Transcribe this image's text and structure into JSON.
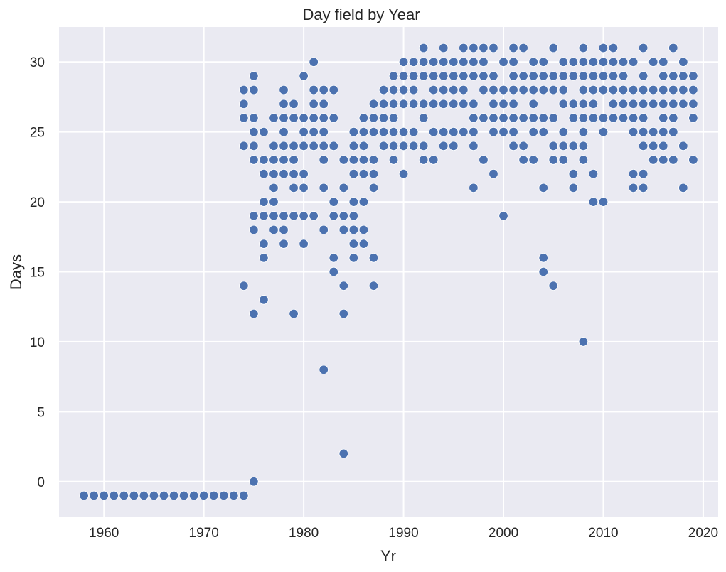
{
  "chart_data": {
    "type": "scatter",
    "title": "Day field by Year",
    "xlabel": "Yr",
    "ylabel": "Days",
    "xlim": [
      1955.5,
      2021.5
    ],
    "ylim": [
      -2.5,
      32.5
    ],
    "xticks": [
      1960,
      1970,
      1980,
      1990,
      2000,
      2010,
      2020
    ],
    "yticks": [
      0,
      5,
      10,
      15,
      20,
      25,
      30
    ],
    "grid": true,
    "legend": null,
    "colors": {
      "point": "#4c72b0",
      "background": "#eaeaf2",
      "grid": "#ffffff",
      "text": "#262626"
    },
    "points_by_year": {
      "1958": [
        -1
      ],
      "1959": [
        -1
      ],
      "1960": [
        -1
      ],
      "1961": [
        -1
      ],
      "1962": [
        -1
      ],
      "1963": [
        -1
      ],
      "1964": [
        -1
      ],
      "1965": [
        -1
      ],
      "1966": [
        -1
      ],
      "1967": [
        -1
      ],
      "1968": [
        -1
      ],
      "1969": [
        -1
      ],
      "1970": [
        -1
      ],
      "1971": [
        -1
      ],
      "1972": [
        -1
      ],
      "1973": [
        -1
      ],
      "1974": [
        -1,
        28,
        27,
        26,
        24,
        14
      ],
      "1975": [
        29,
        28,
        26,
        25,
        24,
        23,
        19,
        18,
        12,
        0
      ],
      "1976": [
        25,
        23,
        22,
        20,
        19,
        17,
        16,
        13
      ],
      "1977": [
        26,
        24,
        23,
        22,
        21,
        20,
        19,
        18
      ],
      "1978": [
        28,
        27,
        26,
        25,
        24,
        23,
        22,
        19,
        18,
        17
      ],
      "1979": [
        27,
        26,
        24,
        23,
        22,
        21,
        19,
        12
      ],
      "1980": [
        29,
        26,
        25,
        24,
        22,
        21,
        19,
        17
      ],
      "1981": [
        30,
        28,
        27,
        26,
        25,
        24,
        19
      ],
      "1982": [
        28,
        27,
        26,
        25,
        24,
        23,
        21,
        18,
        8
      ],
      "1983": [
        28,
        26,
        24,
        20,
        19,
        16,
        15
      ],
      "1984": [
        23,
        21,
        19,
        18,
        14,
        12,
        2
      ],
      "1985": [
        25,
        24,
        23,
        22,
        20,
        19,
        18,
        17,
        16
      ],
      "1986": [
        26,
        25,
        24,
        23,
        22,
        20,
        18,
        17
      ],
      "1987": [
        27,
        26,
        25,
        23,
        22,
        21,
        16,
        14
      ],
      "1988": [
        28,
        27,
        26,
        25,
        24
      ],
      "1989": [
        29,
        28,
        27,
        26,
        25,
        24,
        23
      ],
      "1990": [
        30,
        29,
        28,
        27,
        25,
        24,
        22
      ],
      "1991": [
        30,
        29,
        28,
        27,
        25,
        24
      ],
      "1992": [
        31,
        30,
        29,
        27,
        26,
        24,
        23
      ],
      "1993": [
        30,
        29,
        28,
        27,
        25,
        23
      ],
      "1994": [
        31,
        30,
        29,
        28,
        27,
        25,
        24
      ],
      "1995": [
        30,
        29,
        28,
        27,
        25,
        24
      ],
      "1996": [
        31,
        30,
        29,
        28,
        27,
        25
      ],
      "1997": [
        31,
        30,
        29,
        27,
        26,
        25,
        24,
        21
      ],
      "1998": [
        31,
        30,
        29,
        28,
        26,
        23
      ],
      "1999": [
        31,
        29,
        28,
        27,
        26,
        25,
        22
      ],
      "2000": [
        30,
        28,
        27,
        26,
        25,
        19
      ],
      "2001": [
        31,
        30,
        29,
        28,
        27,
        26,
        25,
        24
      ],
      "2002": [
        31,
        29,
        28,
        26,
        24,
        23
      ],
      "2003": [
        30,
        29,
        28,
        27,
        26,
        25,
        23
      ],
      "2004": [
        30,
        29,
        28,
        26,
        25,
        21,
        16,
        15
      ],
      "2005": [
        31,
        29,
        28,
        26,
        24,
        23,
        14
      ],
      "2006": [
        30,
        29,
        28,
        27,
        25,
        24,
        23
      ],
      "2007": [
        30,
        29,
        27,
        26,
        24,
        22,
        21
      ],
      "2008": [
        31,
        30,
        29,
        28,
        27,
        26,
        25,
        24,
        23,
        10
      ],
      "2009": [
        30,
        29,
        28,
        27,
        26,
        22,
        20
      ],
      "2010": [
        31,
        30,
        29,
        28,
        26,
        25,
        20
      ],
      "2011": [
        31,
        30,
        29,
        28,
        27,
        26
      ],
      "2012": [
        30,
        29,
        28,
        27,
        26
      ],
      "2013": [
        30,
        28,
        27,
        26,
        25,
        22,
        21
      ],
      "2014": [
        31,
        29,
        28,
        27,
        26,
        25,
        24,
        22,
        21
      ],
      "2015": [
        30,
        28,
        27,
        25,
        24,
        23
      ],
      "2016": [
        30,
        29,
        28,
        27,
        26,
        25,
        24,
        23
      ],
      "2017": [
        31,
        29,
        28,
        27,
        26,
        25,
        23
      ],
      "2018": [
        30,
        29,
        28,
        27,
        24,
        21
      ],
      "2019": [
        29,
        28,
        27,
        26,
        23
      ]
    }
  }
}
